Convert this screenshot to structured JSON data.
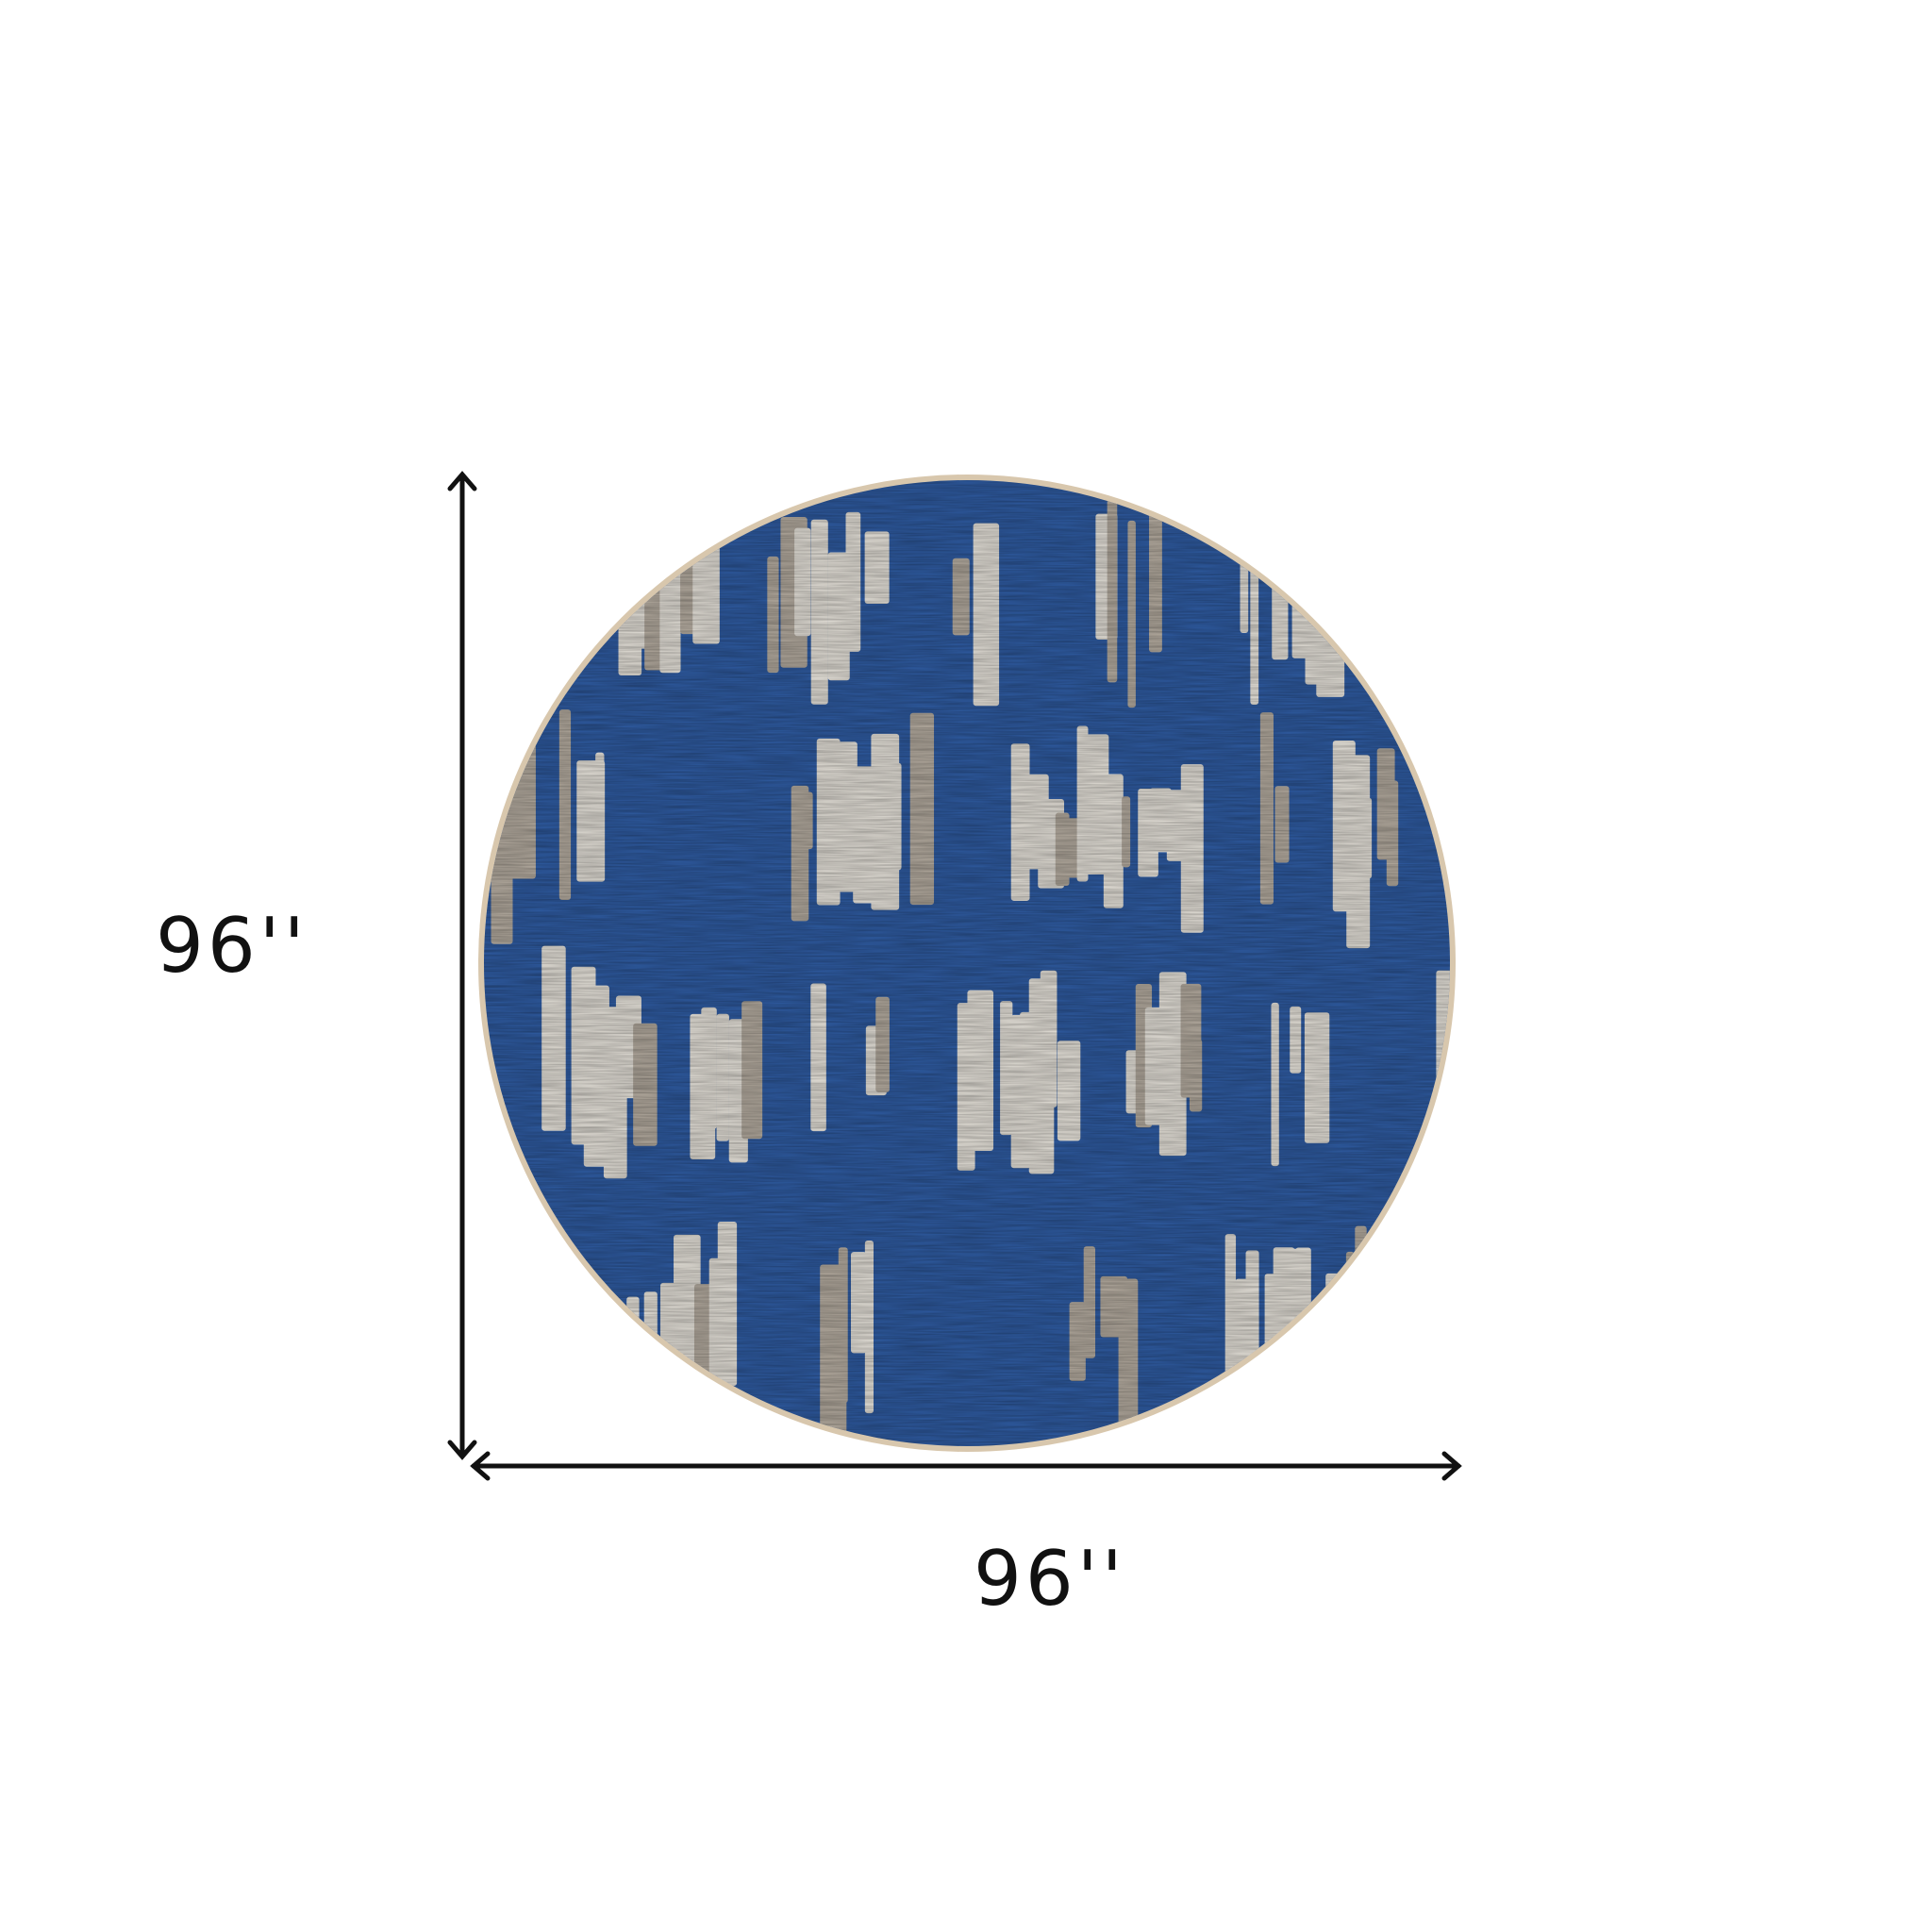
{
  "product": {
    "shape": "round rug",
    "colors": {
      "field": "#2f5ca3",
      "field_dark": "#24498a",
      "pattern": "#e6e2da",
      "pattern_shadow": "#b5aca0",
      "rim": "#d8c7ad"
    }
  },
  "dimensions": {
    "height_label": "96''",
    "width_label": "96''",
    "line_color": "#111111"
  }
}
